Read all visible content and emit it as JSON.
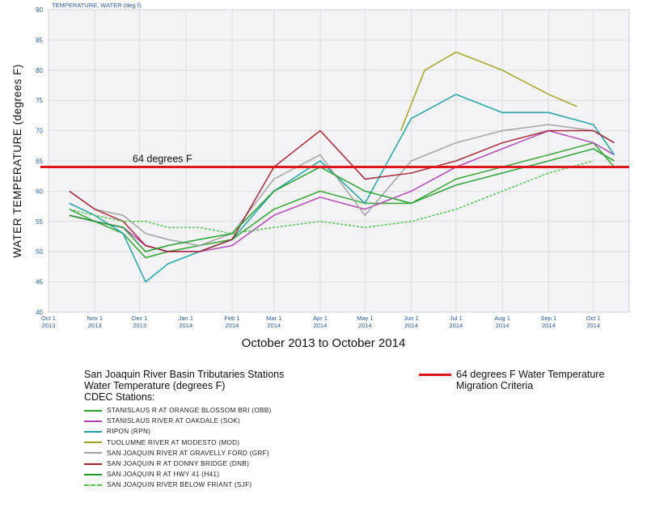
{
  "chart_data": {
    "type": "line",
    "top_label": "TEMPERATURE, WATER (deg f)",
    "ylabel": "WATER TEMPERATURE (degrees F)",
    "xlabel": "October 2013 to October 2014",
    "ylim": [
      40,
      90
    ],
    "yticks": [
      "40",
      "45",
      "50",
      "55",
      "60",
      "65",
      "70",
      "75",
      "80",
      "85",
      "90"
    ],
    "xlim": [
      "2013-10-01",
      "2014-10-25"
    ],
    "xticks": [
      {
        "date": "2013-10-01",
        "line1": "Oct 1",
        "line2": "2013"
      },
      {
        "date": "2013-11-01",
        "line1": "Nov 1",
        "line2": "2013"
      },
      {
        "date": "2013-12-01",
        "line1": "Dec 1",
        "line2": "2013"
      },
      {
        "date": "2014-01-01",
        "line1": "Jan 1",
        "line2": "2014"
      },
      {
        "date": "2014-02-01",
        "line1": "Feb 1",
        "line2": "2014"
      },
      {
        "date": "2014-03-01",
        "line1": "Mar 1",
        "line2": "2014"
      },
      {
        "date": "2014-04-01",
        "line1": "Apr 1",
        "line2": "2014"
      },
      {
        "date": "2014-05-01",
        "line1": "May 1",
        "line2": "2014"
      },
      {
        "date": "2014-06-01",
        "line1": "Jun 1",
        "line2": "2014"
      },
      {
        "date": "2014-07-01",
        "line1": "Jul 1",
        "line2": "2014"
      },
      {
        "date": "2014-08-01",
        "line1": "Aug 1",
        "line2": "2014"
      },
      {
        "date": "2014-09-01",
        "line1": "Sep 1",
        "line2": "2014"
      },
      {
        "date": "2014-10-01",
        "line1": "Oct 1",
        "line2": "2014"
      }
    ],
    "grid": true,
    "threshold": {
      "value": 64,
      "label": "64 degrees F",
      "color": "#e0141b"
    },
    "series": [
      {
        "name": "STANISLAUS R AT ORANGE BLOSSOM BRI (OBB)",
        "color": "#2ca02c",
        "style": "solid",
        "x": [
          "2013-10-15",
          "2013-11-01",
          "2013-11-20",
          "2013-12-05",
          "2013-12-20",
          "2014-01-10",
          "2014-02-01",
          "2014-03-01",
          "2014-04-01",
          "2014-05-01",
          "2014-06-01",
          "2014-07-01",
          "2014-08-01",
          "2014-09-01",
          "2014-10-01",
          "2014-10-15"
        ],
        "values": [
          57,
          55,
          53,
          49,
          50,
          51,
          52,
          57,
          60,
          58,
          58,
          62,
          64,
          66,
          68,
          64
        ]
      },
      {
        "name": "STANISLAUS RIVER AT OAKDALE (SOK)",
        "color": "#b040b0",
        "style": "solid",
        "x": [
          "2013-10-15",
          "2013-11-01",
          "2013-11-20",
          "2013-12-05",
          "2013-12-20",
          "2014-01-10",
          "2014-02-01",
          "2014-03-01",
          "2014-04-01",
          "2014-05-01",
          "2014-06-01",
          "2014-07-01",
          "2014-08-01",
          "2014-09-01",
          "2014-10-01",
          "2014-10-15"
        ],
        "values": [
          56,
          55,
          54,
          51,
          50,
          50,
          51,
          56,
          59,
          57,
          60,
          64,
          67,
          70,
          68,
          66
        ]
      },
      {
        "name": "RIPON (RPN)",
        "color": "#1a9e9e",
        "style": "solid",
        "x": [
          "2013-10-15",
          "2013-11-01",
          "2013-11-20",
          "2013-12-05",
          "2013-12-20",
          "2014-01-10",
          "2014-02-01",
          "2014-03-01",
          "2014-04-01",
          "2014-05-01",
          "2014-06-01",
          "2014-07-01",
          "2014-08-01",
          "2014-09-01",
          "2014-10-01",
          "2014-10-15"
        ],
        "values": [
          58,
          56,
          53,
          45,
          48,
          50,
          52,
          60,
          65,
          58,
          72,
          76,
          73,
          73,
          71,
          66
        ]
      },
      {
        "name": "TUOLUMNE RIVER AT MODESTO (MOD)",
        "color": "#a0a020",
        "style": "solid",
        "x": [
          "2014-05-25",
          "2014-06-10",
          "2014-07-01",
          "2014-08-01",
          "2014-09-01",
          "2014-09-20"
        ],
        "values": [
          70,
          80,
          83,
          80,
          76,
          74
        ]
      },
      {
        "name": "SAN JOAQUIN RIVER AT GRAVELLY FORD (GRF)",
        "color": "#a0a0a0",
        "style": "solid",
        "x": [
          "2013-10-15",
          "2013-11-01",
          "2013-11-20",
          "2013-12-05",
          "2013-12-20",
          "2014-01-10",
          "2014-02-01",
          "2014-03-01",
          "2014-04-01",
          "2014-05-01",
          "2014-06-01",
          "2014-07-01",
          "2014-08-01",
          "2014-09-01",
          "2014-10-01",
          "2014-10-15"
        ],
        "values": [
          60,
          57,
          56,
          53,
          52,
          51,
          53,
          62,
          66,
          56,
          65,
          68,
          70,
          71,
          70,
          68
        ]
      },
      {
        "name": "SAN JOAQUIN R AT DONNY BRIDGE (DNB)",
        "color": "#a02030",
        "style": "solid",
        "x": [
          "2013-10-15",
          "2013-11-01",
          "2013-11-20",
          "2013-12-05",
          "2013-12-20",
          "2014-01-10",
          "2014-02-01",
          "2014-03-01",
          "2014-04-01",
          "2014-05-01",
          "2014-06-01",
          "2014-07-01",
          "2014-08-01",
          "2014-09-01",
          "2014-10-01",
          "2014-10-15"
        ],
        "values": [
          60,
          57,
          55,
          51,
          50,
          50,
          52,
          64,
          70,
          62,
          63,
          65,
          68,
          70,
          70,
          68
        ]
      },
      {
        "name": "SAN JOAQUIN R AT HWY 41 (H41)",
        "color": "#1c9c2c",
        "style": "solid",
        "x": [
          "2013-10-15",
          "2013-11-01",
          "2013-11-20",
          "2013-12-05",
          "2013-12-20",
          "2014-01-10",
          "2014-02-01",
          "2014-03-01",
          "2014-04-01",
          "2014-05-01",
          "2014-06-01",
          "2014-07-01",
          "2014-08-01",
          "2014-09-01",
          "2014-10-01",
          "2014-10-15"
        ],
        "values": [
          56,
          55,
          54,
          50,
          51,
          52,
          53,
          60,
          64,
          60,
          58,
          61,
          63,
          65,
          67,
          65
        ]
      },
      {
        "name": "SAN JOAQUIN RIVER BELOW FRIANT (SJF)",
        "color": "#4cbf4c",
        "style": "dashed",
        "x": [
          "2013-10-15",
          "2013-11-01",
          "2013-11-20",
          "2013-12-05",
          "2013-12-20",
          "2014-01-10",
          "2014-02-01",
          "2014-03-01",
          "2014-04-01",
          "2014-05-01",
          "2014-06-01",
          "2014-07-01",
          "2014-08-01",
          "2014-09-01",
          "2014-10-01"
        ],
        "values": [
          57,
          56,
          55,
          55,
          54,
          54,
          53,
          54,
          55,
          54,
          55,
          57,
          60,
          63,
          65
        ]
      }
    ]
  },
  "legend": {
    "title_lines": [
      "San Joaquin River Basin Tributaries Stations",
      "Water Temperature (degrees F)",
      "CDEC Stations:"
    ],
    "criteria_lines": [
      "64 degrees F Water Temperature",
      "Migration Criteria"
    ]
  }
}
